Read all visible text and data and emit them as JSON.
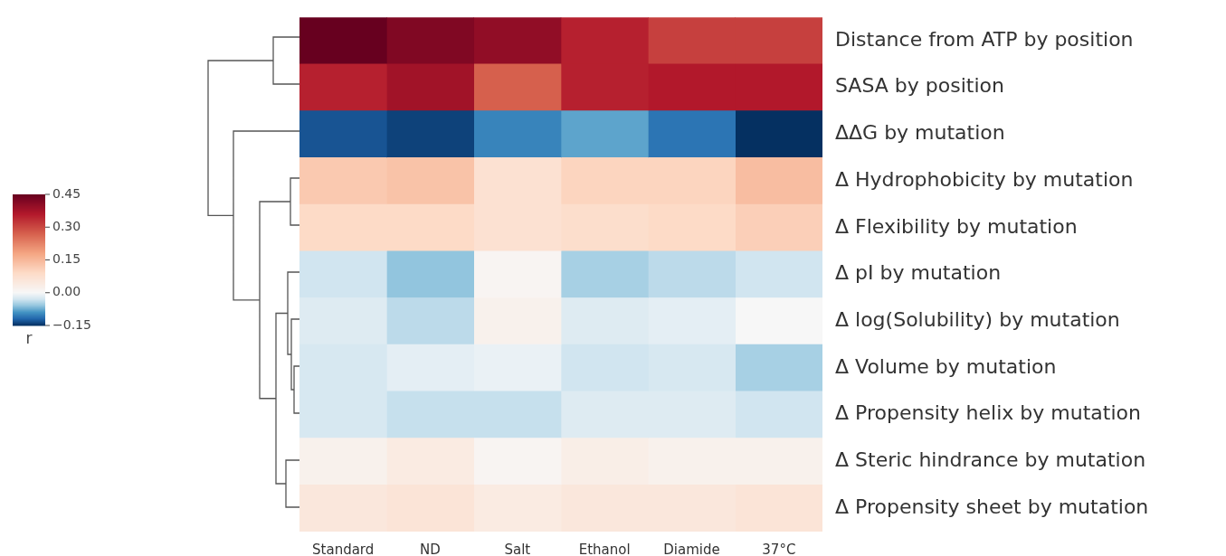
{
  "chart_data": {
    "type": "heatmap",
    "categories": [
      "Standard",
      "ND",
      "Salt",
      "Ethanol",
      "Diamide",
      "37°C"
    ],
    "y_categories": [
      "Distance from ATP by position",
      "SASA by position",
      "ΔΔG by mutation",
      "Δ Hydrophobicity by mutation",
      "Δ Flexibility by mutation",
      "Δ pI by mutation",
      "Δ log(Solubility) by mutation",
      "Δ Volume by mutation",
      "Δ Propensity helix by mutation",
      "Δ Steric hindrance by mutation",
      "Δ Propensity sheet by mutation"
    ],
    "cells": [
      [
        0.45,
        0.42,
        0.4,
        0.35,
        0.31,
        0.31
      ],
      [
        0.35,
        0.38,
        0.27,
        0.35,
        0.36,
        0.36
      ],
      [
        -0.13,
        -0.14,
        -0.1,
        -0.08,
        -0.11,
        -0.15
      ],
      [
        0.12,
        0.13,
        0.07,
        0.1,
        0.1,
        0.14
      ],
      [
        0.09,
        0.09,
        0.07,
        0.08,
        0.09,
        0.11
      ],
      [
        -0.03,
        -0.06,
        0.01,
        -0.05,
        -0.04,
        -0.03
      ],
      [
        -0.02,
        -0.04,
        0.02,
        -0.02,
        -0.015,
        0.0
      ],
      [
        -0.025,
        -0.015,
        -0.01,
        -0.03,
        -0.025,
        -0.05
      ],
      [
        -0.025,
        -0.035,
        -0.035,
        -0.02,
        -0.02,
        -0.03
      ],
      [
        0.02,
        0.04,
        0.01,
        0.03,
        0.02,
        0.02
      ],
      [
        0.05,
        0.06,
        0.04,
        0.05,
        0.05,
        0.06
      ]
    ],
    "clim": [
      -0.15,
      0.45
    ],
    "cticks": [
      {
        "value": 0.45,
        "label": "0.45"
      },
      {
        "value": 0.3,
        "label": "0.30"
      },
      {
        "value": 0.15,
        "label": "0.15"
      },
      {
        "value": 0,
        "label": "0.00"
      },
      {
        "value": -0.15,
        "label": "−0.15"
      }
    ],
    "clabel": "r"
  }
}
